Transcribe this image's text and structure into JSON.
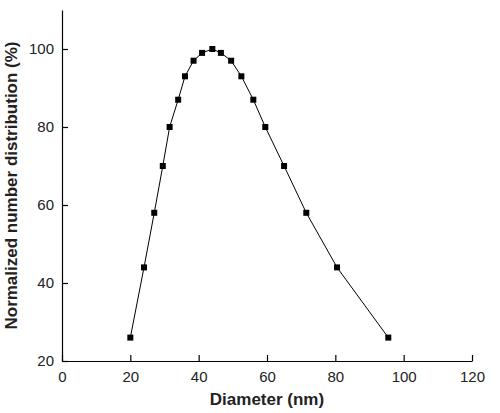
{
  "chart_data": {
    "type": "line",
    "x_label": "Diameter (nm)",
    "y_label": "Normalized number distribution (%)",
    "x": [
      20,
      24,
      27,
      29.5,
      31.5,
      34,
      36,
      38.5,
      41,
      44,
      46.5,
      49.5,
      52.5,
      56,
      59.5,
      65,
      71.5,
      80.5,
      95.5
    ],
    "values": [
      26,
      44,
      58,
      70,
      80,
      87,
      93,
      97,
      99,
      100,
      99,
      97,
      93,
      87,
      80,
      70,
      58,
      44,
      26
    ],
    "color": "#000000",
    "marker": "square",
    "line_style": "solid",
    "xlim": [
      0,
      120
    ],
    "xticks": [
      0,
      20,
      40,
      60,
      80,
      100,
      120
    ],
    "ylim": [
      20,
      110
    ],
    "yticks": [
      20,
      40,
      60,
      80,
      100
    ]
  }
}
